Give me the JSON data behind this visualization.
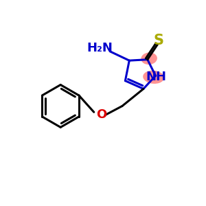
{
  "background_color": "#ffffff",
  "bond_color": "#000000",
  "triazole_color": "#0000cc",
  "sulfur_color": "#aaaa00",
  "oxygen_color": "#dd0000",
  "highlight_color": "#ff8888",
  "nh_text": "NH",
  "nh2_text": "H₂N",
  "s_text": "S",
  "o_text": "O",
  "figsize": [
    3.0,
    3.0
  ],
  "dpi": 100,
  "xlim": [
    0,
    10
  ],
  "ylim": [
    0,
    10
  ]
}
